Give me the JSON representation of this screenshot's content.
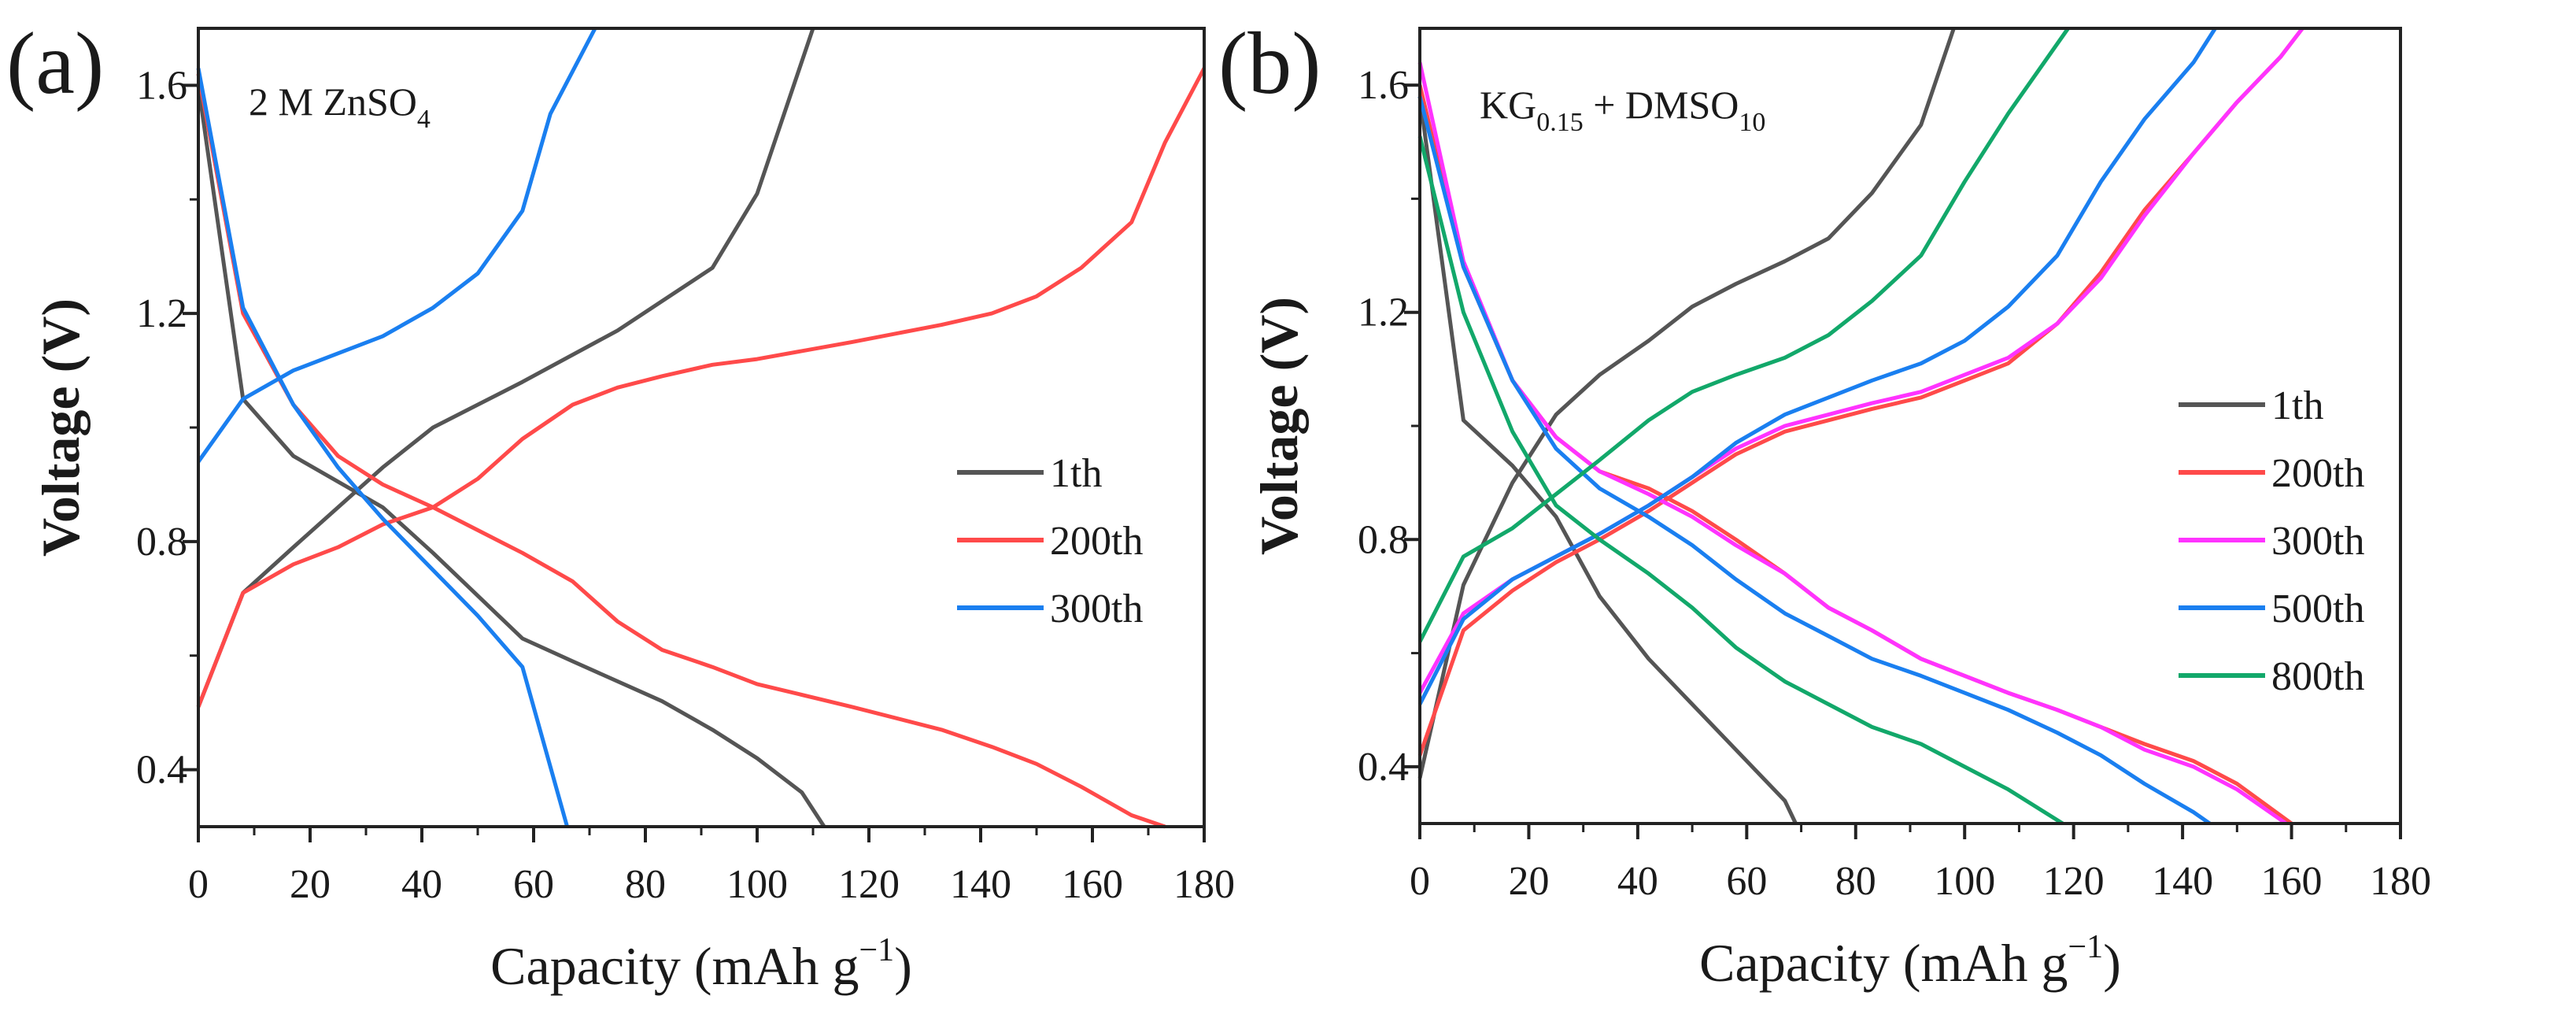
{
  "chart_data": [
    {
      "type": "line",
      "panel_label": "(a)",
      "annotation": {
        "main": "2 M ZnSO",
        "sub": "4",
        "tail": ""
      },
      "xlabel": "Capacity (mAh g",
      "xlabel_sup": "−1",
      "xlabel_end": ")",
      "ylabel": "Voltage (V)",
      "xlim": [
        0,
        180
      ],
      "ylim": [
        0.3,
        1.7
      ],
      "xticks": [
        "0",
        "20",
        "40",
        "60",
        "80",
        "100",
        "120",
        "140",
        "160",
        "180"
      ],
      "yticks": [
        "0.4",
        "0.8",
        "1.2",
        "1.6"
      ],
      "legend_position": "center-right",
      "series": [
        {
          "name": "1th",
          "color": "#555555",
          "discharge": [
            [
              0,
              1.6
            ],
            [
              8,
              1.05
            ],
            [
              17,
              0.95
            ],
            [
              33,
              0.86
            ],
            [
              42,
              0.78
            ],
            [
              58,
              0.63
            ],
            [
              67,
              0.59
            ],
            [
              83,
              0.52
            ],
            [
              92,
              0.47
            ],
            [
              100,
              0.42
            ],
            [
              108,
              0.36
            ],
            [
              112,
              0.3
            ]
          ],
          "charge": [
            [
              0,
              0.51
            ],
            [
              8,
              0.71
            ],
            [
              17,
              0.79
            ],
            [
              33,
              0.93
            ],
            [
              42,
              1.0
            ],
            [
              58,
              1.08
            ],
            [
              75,
              1.17
            ],
            [
              92,
              1.28
            ],
            [
              100,
              1.41
            ],
            [
              110,
              1.7
            ]
          ]
        },
        {
          "name": "200th",
          "color": "#ff4a4a",
          "discharge": [
            [
              0,
              1.62
            ],
            [
              8,
              1.2
            ],
            [
              17,
              1.04
            ],
            [
              25,
              0.95
            ],
            [
              33,
              0.9
            ],
            [
              42,
              0.86
            ],
            [
              50,
              0.82
            ],
            [
              58,
              0.78
            ],
            [
              67,
              0.73
            ],
            [
              75,
              0.66
            ],
            [
              83,
              0.61
            ],
            [
              92,
              0.58
            ],
            [
              100,
              0.55
            ],
            [
              117,
              0.51
            ],
            [
              133,
              0.47
            ],
            [
              142,
              0.44
            ],
            [
              150,
              0.41
            ],
            [
              158,
              0.37
            ],
            [
              167,
              0.32
            ],
            [
              173,
              0.3
            ]
          ],
          "charge": [
            [
              0,
              0.51
            ],
            [
              8,
              0.71
            ],
            [
              17,
              0.76
            ],
            [
              25,
              0.79
            ],
            [
              33,
              0.83
            ],
            [
              42,
              0.86
            ],
            [
              50,
              0.91
            ],
            [
              58,
              0.98
            ],
            [
              67,
              1.04
            ],
            [
              75,
              1.07
            ],
            [
              83,
              1.09
            ],
            [
              92,
              1.11
            ],
            [
              100,
              1.12
            ],
            [
              117,
              1.15
            ],
            [
              133,
              1.18
            ],
            [
              142,
              1.2
            ],
            [
              150,
              1.23
            ],
            [
              158,
              1.28
            ],
            [
              167,
              1.36
            ],
            [
              173,
              1.5
            ],
            [
              180,
              1.63
            ]
          ]
        },
        {
          "name": "300th",
          "color": "#1a7ff0",
          "discharge": [
            [
              0,
              1.63
            ],
            [
              8,
              1.21
            ],
            [
              17,
              1.04
            ],
            [
              25,
              0.93
            ],
            [
              33,
              0.84
            ],
            [
              42,
              0.75
            ],
            [
              50,
              0.67
            ],
            [
              58,
              0.58
            ],
            [
              66,
              0.3
            ]
          ],
          "charge": [
            [
              0,
              0.94
            ],
            [
              8,
              1.05
            ],
            [
              17,
              1.1
            ],
            [
              25,
              1.13
            ],
            [
              33,
              1.16
            ],
            [
              42,
              1.21
            ],
            [
              50,
              1.27
            ],
            [
              58,
              1.38
            ],
            [
              63,
              1.55
            ],
            [
              71,
              1.7
            ]
          ]
        }
      ]
    },
    {
      "type": "line",
      "panel_label": "(b)",
      "annotation": {
        "main": "KG",
        "sub": "0.15",
        "tail": " + DMSO",
        "sub2": "10"
      },
      "xlabel": "Capacity (mAh g",
      "xlabel_sup": "−1",
      "xlabel_end": ")",
      "ylabel": "Voltage (V)",
      "xlim": [
        0,
        180
      ],
      "ylim": [
        0.3,
        1.7
      ],
      "xticks": [
        "0",
        "20",
        "40",
        "60",
        "80",
        "100",
        "120",
        "140",
        "160",
        "180"
      ],
      "yticks": [
        "0.4",
        "0.8",
        "1.2",
        "1.6"
      ],
      "legend_position": "center-right",
      "series": [
        {
          "name": "1th",
          "color": "#555555",
          "discharge": [
            [
              0,
              1.58
            ],
            [
              8,
              1.01
            ],
            [
              17,
              0.93
            ],
            [
              25,
              0.84
            ],
            [
              33,
              0.7
            ],
            [
              42,
              0.59
            ],
            [
              50,
              0.51
            ],
            [
              58,
              0.43
            ],
            [
              67,
              0.34
            ],
            [
              69,
              0.3
            ]
          ],
          "charge": [
            [
              0,
              0.38
            ],
            [
              8,
              0.72
            ],
            [
              17,
              0.9
            ],
            [
              25,
              1.02
            ],
            [
              33,
              1.09
            ],
            [
              42,
              1.15
            ],
            [
              50,
              1.21
            ],
            [
              58,
              1.25
            ],
            [
              67,
              1.29
            ],
            [
              75,
              1.33
            ],
            [
              83,
              1.41
            ],
            [
              92,
              1.53
            ],
            [
              98,
              1.7
            ]
          ]
        },
        {
          "name": "200th",
          "color": "#ff4a4a",
          "discharge": [
            [
              0,
              1.6
            ],
            [
              8,
              1.28
            ],
            [
              17,
              1.08
            ],
            [
              25,
              0.98
            ],
            [
              33,
              0.92
            ],
            [
              42,
              0.89
            ],
            [
              50,
              0.85
            ],
            [
              58,
              0.8
            ],
            [
              67,
              0.74
            ],
            [
              75,
              0.68
            ],
            [
              83,
              0.64
            ],
            [
              92,
              0.59
            ],
            [
              100,
              0.56
            ],
            [
              108,
              0.53
            ],
            [
              117,
              0.5
            ],
            [
              125,
              0.47
            ],
            [
              133,
              0.44
            ],
            [
              142,
              0.41
            ],
            [
              150,
              0.37
            ],
            [
              160,
              0.3
            ]
          ],
          "charge": [
            [
              0,
              0.42
            ],
            [
              8,
              0.64
            ],
            [
              17,
              0.71
            ],
            [
              25,
              0.76
            ],
            [
              33,
              0.8
            ],
            [
              42,
              0.85
            ],
            [
              50,
              0.9
            ],
            [
              58,
              0.95
            ],
            [
              67,
              0.99
            ],
            [
              75,
              1.01
            ],
            [
              83,
              1.03
            ],
            [
              92,
              1.05
            ],
            [
              100,
              1.08
            ],
            [
              108,
              1.11
            ],
            [
              117,
              1.18
            ],
            [
              125,
              1.27
            ],
            [
              133,
              1.38
            ],
            [
              142,
              1.48
            ],
            [
              150,
              1.57
            ],
            [
              158,
              1.65
            ],
            [
              162,
              1.7
            ]
          ]
        },
        {
          "name": "300th",
          "color": "#ff33ff",
          "discharge": [
            [
              0,
              1.64
            ],
            [
              8,
              1.29
            ],
            [
              17,
              1.08
            ],
            [
              25,
              0.98
            ],
            [
              33,
              0.92
            ],
            [
              42,
              0.88
            ],
            [
              50,
              0.84
            ],
            [
              58,
              0.79
            ],
            [
              67,
              0.74
            ],
            [
              75,
              0.68
            ],
            [
              83,
              0.64
            ],
            [
              92,
              0.59
            ],
            [
              100,
              0.56
            ],
            [
              108,
              0.53
            ],
            [
              117,
              0.5
            ],
            [
              125,
              0.47
            ],
            [
              133,
              0.43
            ],
            [
              142,
              0.4
            ],
            [
              150,
              0.36
            ],
            [
              159,
              0.3
            ]
          ],
          "charge": [
            [
              0,
              0.53
            ],
            [
              8,
              0.67
            ],
            [
              17,
              0.73
            ],
            [
              25,
              0.77
            ],
            [
              33,
              0.81
            ],
            [
              42,
              0.86
            ],
            [
              50,
              0.91
            ],
            [
              58,
              0.96
            ],
            [
              67,
              1.0
            ],
            [
              75,
              1.02
            ],
            [
              83,
              1.04
            ],
            [
              92,
              1.06
            ],
            [
              100,
              1.09
            ],
            [
              108,
              1.12
            ],
            [
              117,
              1.18
            ],
            [
              125,
              1.26
            ],
            [
              133,
              1.37
            ],
            [
              142,
              1.48
            ],
            [
              150,
              1.57
            ],
            [
              158,
              1.65
            ],
            [
              162,
              1.7
            ]
          ]
        },
        {
          "name": "500th",
          "color": "#1a7ff0",
          "discharge": [
            [
              0,
              1.58
            ],
            [
              8,
              1.28
            ],
            [
              17,
              1.08
            ],
            [
              25,
              0.96
            ],
            [
              33,
              0.89
            ],
            [
              42,
              0.84
            ],
            [
              50,
              0.79
            ],
            [
              58,
              0.73
            ],
            [
              67,
              0.67
            ],
            [
              75,
              0.63
            ],
            [
              83,
              0.59
            ],
            [
              92,
              0.56
            ],
            [
              100,
              0.53
            ],
            [
              108,
              0.5
            ],
            [
              117,
              0.46
            ],
            [
              125,
              0.42
            ],
            [
              133,
              0.37
            ],
            [
              142,
              0.32
            ],
            [
              145,
              0.3
            ]
          ],
          "charge": [
            [
              0,
              0.51
            ],
            [
              8,
              0.66
            ],
            [
              17,
              0.73
            ],
            [
              25,
              0.77
            ],
            [
              33,
              0.81
            ],
            [
              42,
              0.86
            ],
            [
              50,
              0.91
            ],
            [
              58,
              0.97
            ],
            [
              67,
              1.02
            ],
            [
              75,
              1.05
            ],
            [
              83,
              1.08
            ],
            [
              92,
              1.11
            ],
            [
              100,
              1.15
            ],
            [
              108,
              1.21
            ],
            [
              117,
              1.3
            ],
            [
              125,
              1.43
            ],
            [
              133,
              1.54
            ],
            [
              142,
              1.64
            ],
            [
              146,
              1.7
            ]
          ]
        },
        {
          "name": "800th",
          "color": "#12a86a",
          "discharge": [
            [
              0,
              1.51
            ],
            [
              8,
              1.2
            ],
            [
              17,
              0.99
            ],
            [
              25,
              0.86
            ],
            [
              33,
              0.8
            ],
            [
              42,
              0.74
            ],
            [
              50,
              0.68
            ],
            [
              58,
              0.61
            ],
            [
              67,
              0.55
            ],
            [
              75,
              0.51
            ],
            [
              83,
              0.47
            ],
            [
              92,
              0.44
            ],
            [
              100,
              0.4
            ],
            [
              108,
              0.36
            ],
            [
              118,
              0.3
            ]
          ],
          "charge": [
            [
              0,
              0.62
            ],
            [
              8,
              0.77
            ],
            [
              17,
              0.82
            ],
            [
              25,
              0.88
            ],
            [
              33,
              0.94
            ],
            [
              42,
              1.01
            ],
            [
              50,
              1.06
            ],
            [
              58,
              1.09
            ],
            [
              67,
              1.12
            ],
            [
              75,
              1.16
            ],
            [
              83,
              1.22
            ],
            [
              92,
              1.3
            ],
            [
              100,
              1.43
            ],
            [
              108,
              1.55
            ],
            [
              119,
              1.7
            ]
          ]
        }
      ]
    }
  ]
}
